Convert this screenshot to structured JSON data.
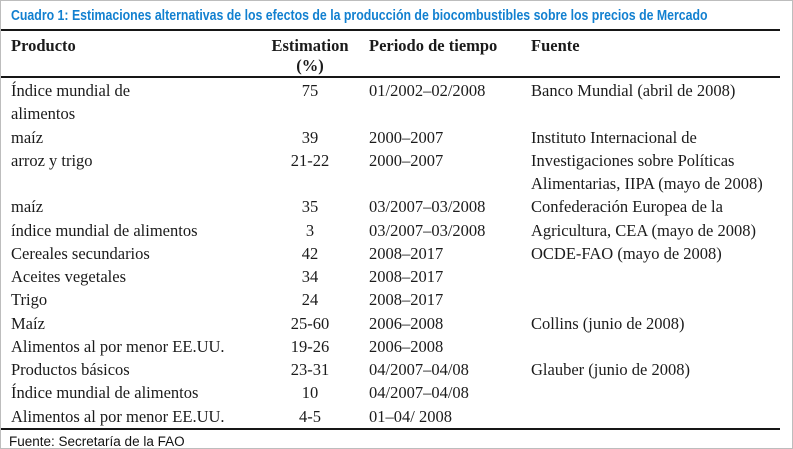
{
  "colors": {
    "caption_blue": "#1280d0",
    "rule_black": "#161616",
    "frame_gray": "#bdbdbd"
  },
  "caption": "Cuadro 1: Estimaciones alternativas de los efectos de la producción de biocombustibles sobre los precios de Mercado",
  "table": {
    "headers": {
      "producto": "Producto",
      "estimation_line1": "Estimation",
      "estimation_line2": "(%)",
      "periodo": "Periodo de tiempo",
      "fuente": "Fuente"
    },
    "rows": [
      {
        "producto": "Índice mundial de",
        "estimation": "75",
        "periodo": "01/2002–02/2008",
        "fuente": "Banco Mundial (abril de 2008)"
      },
      {
        "producto": "alimentos",
        "estimation": "",
        "periodo": "",
        "fuente": ""
      },
      {
        "producto": "maíz",
        "estimation": "39",
        "periodo": "2000–2007",
        "fuente": "Instituto Internacional de"
      },
      {
        "producto": "arroz y trigo",
        "estimation": "21-22",
        "periodo": "2000–2007",
        "fuente": "Investigaciones sobre Políticas"
      },
      {
        "producto": "",
        "estimation": "",
        "periodo": "",
        "fuente": "Alimentarias, IIPA (mayo de 2008)"
      },
      {
        "producto": "maíz",
        "estimation": "35",
        "periodo": "03/2007–03/2008",
        "fuente": "Confederación Europea de la"
      },
      {
        "producto": "índice mundial de alimentos",
        "estimation": "3",
        "periodo": "03/2007–03/2008",
        "fuente": "Agricultura, CEA (mayo de 2008)"
      },
      {
        "producto": "Cereales secundarios",
        "estimation": "42",
        "periodo": "2008–2017",
        "fuente": "OCDE-FAO (mayo de 2008)"
      },
      {
        "producto": "Aceites vegetales",
        "estimation": "34",
        "periodo": "2008–2017",
        "fuente": ""
      },
      {
        "producto": "Trigo",
        "estimation": "24",
        "periodo": "2008–2017",
        "fuente": ""
      },
      {
        "producto": "Maíz",
        "estimation": "25-60",
        "periodo": "2006–2008",
        "fuente": "Collins (junio de 2008)"
      },
      {
        "producto": "Alimentos al por menor EE.UU.",
        "estimation": "19-26",
        "periodo": "2006–2008",
        "fuente": ""
      },
      {
        "producto": "Productos básicos",
        "estimation": "23-31",
        "periodo": "04/2007–04/08",
        "fuente": "Glauber (junio de 2008)"
      },
      {
        "producto": "Índice mundial de alimentos",
        "estimation": "10",
        "periodo": "04/2007–04/08",
        "fuente": ""
      },
      {
        "producto": "Alimentos al por menor EE.UU.",
        "estimation": "4-5",
        "periodo": "01–04/ 2008",
        "fuente": ""
      }
    ]
  },
  "footer": {
    "source": "Fuente: Secretaría de la FAO"
  }
}
